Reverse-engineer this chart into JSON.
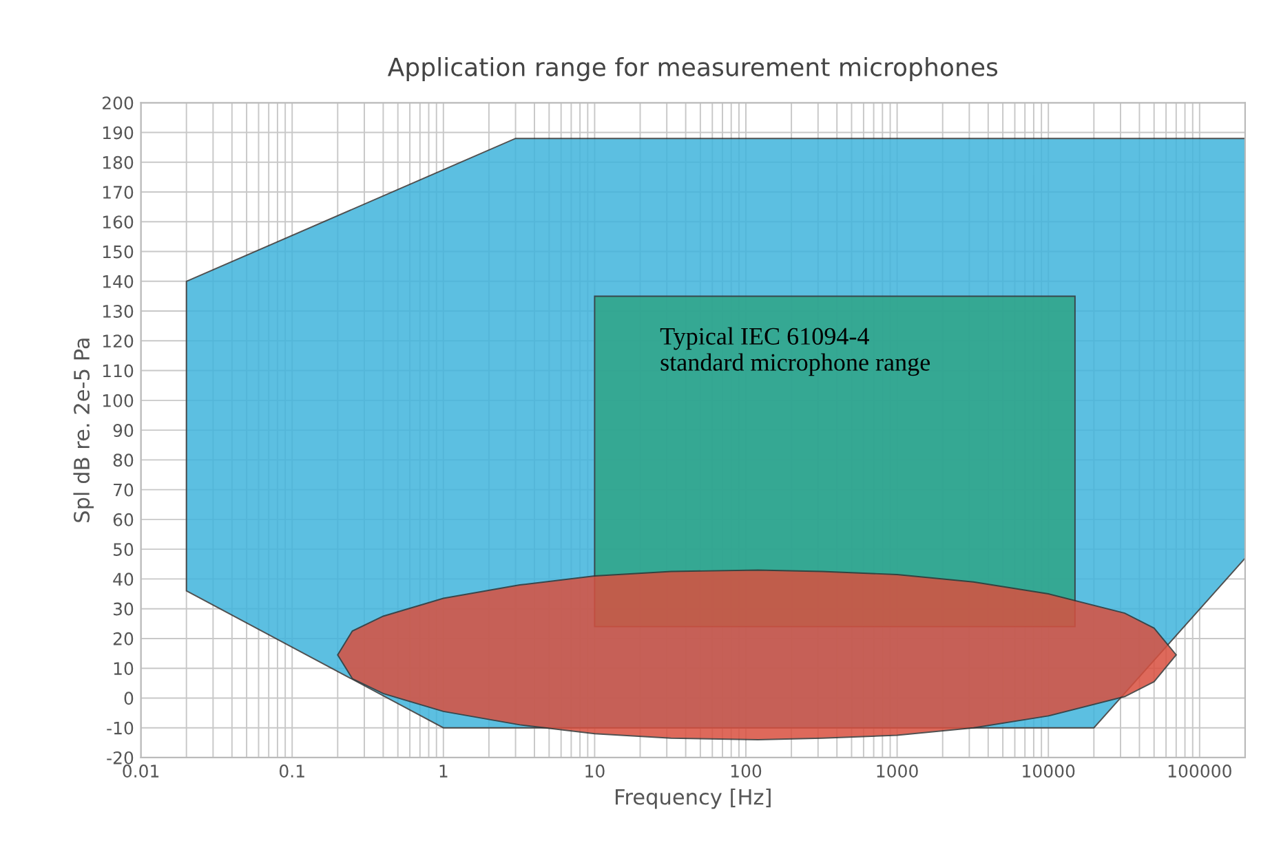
{
  "chart_data": {
    "type": "area",
    "title": "Application range for measurement microphones",
    "xlabel": "Frequency [Hz]",
    "ylabel": "Spl dB re. 2e-5 Pa",
    "log": "x",
    "grid": true,
    "xlim": [
      0.01,
      200000
    ],
    "xticks": [
      {
        "value": 0.01,
        "label": "0.01"
      },
      {
        "value": 0.1,
        "label": "0.1"
      },
      {
        "value": 1,
        "label": "1"
      },
      {
        "value": 10,
        "label": "10"
      },
      {
        "value": 100,
        "label": "100"
      },
      {
        "value": 1000,
        "label": "1000"
      },
      {
        "value": 10000,
        "label": "10000"
      },
      {
        "value": 100000,
        "label": "100000"
      }
    ],
    "ylim": [
      -20,
      200
    ],
    "yticks": [
      -20,
      -10,
      0,
      10,
      20,
      30,
      40,
      50,
      60,
      70,
      80,
      90,
      100,
      110,
      120,
      130,
      140,
      150,
      160,
      170,
      180,
      190,
      200
    ],
    "series": [
      {
        "color": "#40b4dc",
        "x": [
          0.02,
          3,
          200000,
          200000,
          20000,
          1,
          0.02
        ],
        "values": [
          140,
          188,
          188,
          47,
          -10,
          -10,
          36
        ]
      },
      {
        "color": "#2fa486",
        "x": [
          10,
          15000,
          15000,
          10
        ],
        "values": [
          135,
          135,
          24,
          24
        ]
      },
      {
        "color": "#d9503f",
        "x": [
          0.2,
          0.25,
          0.4,
          1,
          3.2,
          10,
          32,
          120,
          320,
          1000,
          3200,
          10000,
          32000,
          50000,
          70000,
          50000,
          32000,
          10000,
          3200,
          1000,
          320,
          120,
          32,
          10,
          3.2,
          1,
          0.4,
          0.25
        ],
        "values": [
          14.5,
          22.5,
          27.5,
          33.5,
          38,
          41,
          42.5,
          43,
          42.5,
          41.5,
          39,
          35,
          28.5,
          23.5,
          14.5,
          5.5,
          0.5,
          -6,
          -10,
          -12.5,
          -13.5,
          -14,
          -13.5,
          -12,
          -9,
          -4.5,
          1.5,
          6.5
        ]
      }
    ],
    "annotations": [
      "Typical IEC 61094-4\nstandard microphone range"
    ]
  }
}
